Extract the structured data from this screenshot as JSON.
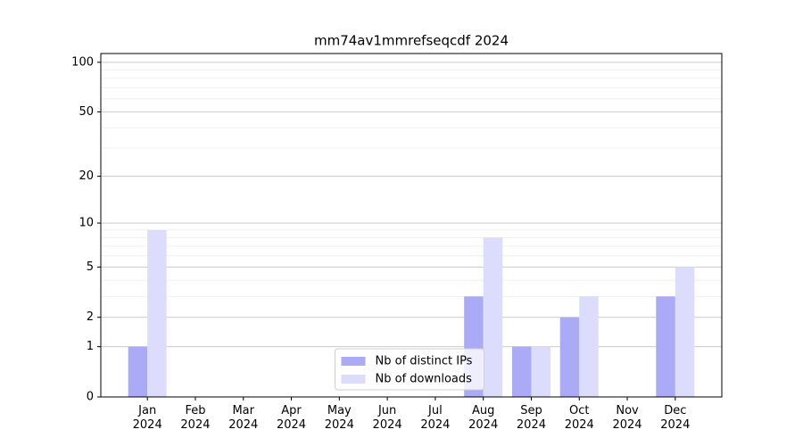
{
  "chart_data": {
    "type": "bar",
    "title": "mm74av1mmrefseqcdf 2024",
    "categories": [
      "Jan\n2024",
      "Feb\n2024",
      "Mar\n2024",
      "Apr\n2024",
      "May\n2024",
      "Jun\n2024",
      "Jul\n2024",
      "Aug\n2024",
      "Sep\n2024",
      "Oct\n2024",
      "Nov\n2024",
      "Dec\n2024"
    ],
    "series": [
      {
        "name": "Nb of distinct IPs",
        "color": "#aaaaf6",
        "values": [
          1,
          0,
          0,
          0,
          0,
          0,
          0,
          3,
          1,
          2,
          0,
          3
        ]
      },
      {
        "name": "Nb of downloads",
        "color": "#dcdcfc",
        "values": [
          9,
          0,
          0,
          0,
          0,
          0,
          0,
          8,
          1,
          3,
          0,
          5
        ]
      }
    ],
    "yscale": "log1p",
    "ylim": [
      0,
      113
    ],
    "yticks": [
      0,
      1,
      2,
      5,
      10,
      20,
      50,
      100
    ],
    "minor_yticks": [
      3,
      4,
      6,
      7,
      8,
      9,
      30,
      40,
      60,
      70,
      80,
      90
    ],
    "grid": true,
    "legend": "lower center"
  }
}
